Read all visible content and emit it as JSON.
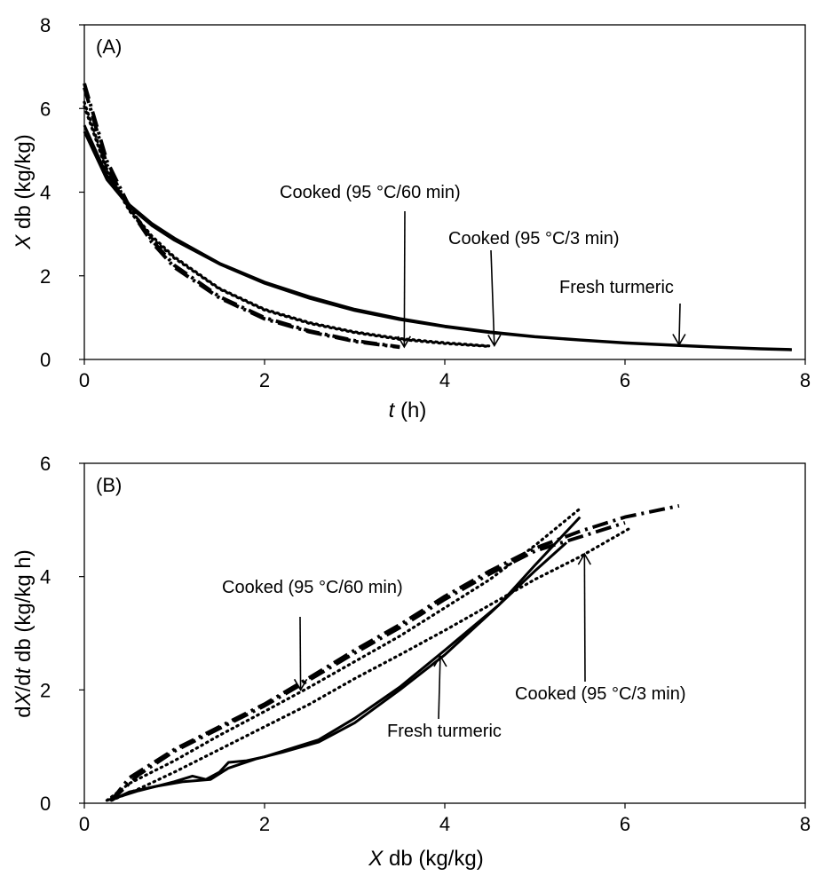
{
  "chart_data": [
    {
      "type": "line",
      "panel_label": "(A)",
      "xlabel": "t (h)",
      "ylabel": "X db (kg/kg)",
      "xlim": [
        0,
        8
      ],
      "ylim": [
        0,
        8
      ],
      "xticks": [
        "0",
        "2",
        "4",
        "6",
        "8"
      ],
      "yticks": [
        "0",
        "2",
        "4",
        "6",
        "8"
      ],
      "grid": false,
      "legend": "none",
      "series": [
        {
          "style": "solid",
          "x": [
            0,
            0.25,
            0.5,
            0.75,
            1,
            1.5,
            2,
            2.5,
            3,
            3.5,
            4,
            4.5,
            5,
            5.5,
            6,
            6.5,
            7,
            7.5,
            7.85
          ],
          "y": [
            5.6,
            4.4,
            3.7,
            3.25,
            2.9,
            2.3,
            1.85,
            1.5,
            1.2,
            0.98,
            0.8,
            0.66,
            0.55,
            0.47,
            0.4,
            0.35,
            0.3,
            0.26,
            0.24
          ]
        },
        {
          "style": "solid",
          "x": [
            0,
            0.25,
            0.5,
            0.75,
            1,
            1.5,
            2,
            2.5,
            3,
            3.5,
            4,
            4.5,
            5,
            5.5,
            6,
            6.5,
            7,
            7.5,
            7.85
          ],
          "y": [
            5.45,
            4.3,
            3.65,
            3.2,
            2.85,
            2.28,
            1.82,
            1.46,
            1.17,
            0.95,
            0.78,
            0.64,
            0.54,
            0.46,
            0.39,
            0.34,
            0.29,
            0.25,
            0.23
          ]
        },
        {
          "style": "dotted",
          "x": [
            0,
            0.25,
            0.5,
            0.75,
            1,
            1.5,
            2,
            2.5,
            3,
            3.5,
            4,
            4.5
          ],
          "y": [
            6.15,
            4.55,
            3.6,
            2.95,
            2.45,
            1.7,
            1.2,
            0.88,
            0.66,
            0.5,
            0.4,
            0.32
          ]
        },
        {
          "style": "dotted",
          "x": [
            0,
            0.25,
            0.5,
            0.75,
            1,
            1.5,
            2,
            2.5,
            3,
            3.5,
            4,
            4.5
          ],
          "y": [
            6.05,
            4.5,
            3.55,
            2.9,
            2.42,
            1.68,
            1.18,
            0.86,
            0.64,
            0.48,
            0.38,
            0.31
          ]
        },
        {
          "style": "dashdot",
          "x": [
            0,
            0.25,
            0.5,
            0.75,
            1,
            1.5,
            2,
            2.5,
            3,
            3.5
          ],
          "y": [
            6.6,
            4.75,
            3.65,
            2.85,
            2.25,
            1.5,
            1.0,
            0.68,
            0.45,
            0.3
          ]
        },
        {
          "style": "dashdot",
          "x": [
            0,
            0.25,
            0.5,
            0.75,
            1,
            1.5,
            2,
            2.5,
            3,
            3.5
          ],
          "y": [
            6.5,
            4.65,
            3.6,
            2.8,
            2.2,
            1.47,
            0.97,
            0.66,
            0.43,
            0.29
          ]
        }
      ],
      "annotations": [
        {
          "text": "Cooked (95 °C/60 min)",
          "x": 3.55,
          "y": 0.3
        },
        {
          "text": "Cooked (95 °C/3 min)",
          "x": 4.55,
          "y": 0.33
        },
        {
          "text": "Fresh turmeric",
          "x": 6.6,
          "y": 0.35
        }
      ]
    },
    {
      "type": "line",
      "panel_label": "(B)",
      "xlabel": "X db (kg/kg)",
      "ylabel": "dX/dt db (kg/kg h)",
      "xlim": [
        0,
        8
      ],
      "ylim": [
        0,
        6
      ],
      "xticks": [
        "0",
        "2",
        "4",
        "6",
        "8"
      ],
      "yticks": [
        "0",
        "2",
        "4",
        "6"
      ],
      "grid": false,
      "legend": "none",
      "series": [
        {
          "style": "solid",
          "x": [
            0.25,
            0.4,
            0.6,
            0.8,
            1.0,
            1.2,
            1.35,
            1.5,
            1.6,
            1.8,
            2.0,
            2.6,
            3.0,
            3.5,
            4.0,
            4.6,
            5.0,
            5.5
          ],
          "y": [
            0.05,
            0.12,
            0.22,
            0.3,
            0.38,
            0.48,
            0.42,
            0.55,
            0.72,
            0.75,
            0.82,
            1.12,
            1.5,
            2.05,
            2.7,
            3.5,
            4.2,
            5.05
          ]
        },
        {
          "style": "solid",
          "x": [
            0.3,
            0.5,
            0.8,
            1.1,
            1.4,
            1.6,
            1.9,
            2.2,
            2.6,
            3.0,
            3.5,
            4.0,
            4.5,
            5.0,
            5.35
          ],
          "y": [
            0.05,
            0.2,
            0.3,
            0.38,
            0.42,
            0.62,
            0.78,
            0.9,
            1.08,
            1.42,
            2.0,
            2.62,
            3.35,
            4.1,
            4.6
          ]
        },
        {
          "style": "dotted",
          "x": [
            0.25,
            0.5,
            1.0,
            1.5,
            2.0,
            2.5,
            3.0,
            3.5,
            4.0,
            4.5,
            5.0,
            5.5
          ],
          "y": [
            0.05,
            0.35,
            0.75,
            1.2,
            1.62,
            2.05,
            2.5,
            2.95,
            3.45,
            3.95,
            4.55,
            5.2
          ]
        },
        {
          "style": "dotted",
          "x": [
            0.3,
            0.6,
            1.0,
            1.5,
            2.0,
            2.5,
            3.0,
            3.5,
            4.0,
            4.5,
            5.0,
            5.5,
            6.05
          ],
          "y": [
            0.05,
            0.25,
            0.55,
            0.95,
            1.35,
            1.75,
            2.2,
            2.62,
            3.05,
            3.5,
            3.95,
            4.35,
            4.85
          ]
        },
        {
          "style": "dashdot",
          "x": [
            0.3,
            0.5,
            1.0,
            1.5,
            2.0,
            2.5,
            3.0,
            3.5,
            4.0,
            4.5,
            5.0,
            5.5,
            6.0,
            6.6
          ],
          "y": [
            0.05,
            0.45,
            0.95,
            1.35,
            1.75,
            2.22,
            2.7,
            3.15,
            3.65,
            4.1,
            4.5,
            4.8,
            5.05,
            5.25
          ]
        },
        {
          "style": "dashdot",
          "x": [
            0.3,
            0.6,
            1.0,
            1.5,
            2.0,
            2.5,
            3.0,
            3.5,
            4.0,
            4.5,
            5.0,
            5.5,
            6.0
          ],
          "y": [
            0.05,
            0.5,
            0.92,
            1.32,
            1.72,
            2.18,
            2.65,
            3.1,
            3.6,
            4.05,
            4.45,
            4.7,
            4.95
          ]
        }
      ],
      "annotations": [
        {
          "text": "Cooked (95 °C/60 min)",
          "x": 2.4,
          "y": 2.0
        },
        {
          "text": "Cooked (95 °C/3 min)",
          "x": 5.55,
          "y": 4.4
        },
        {
          "text": "Fresh turmeric",
          "x": 3.95,
          "y": 2.6
        }
      ]
    }
  ]
}
